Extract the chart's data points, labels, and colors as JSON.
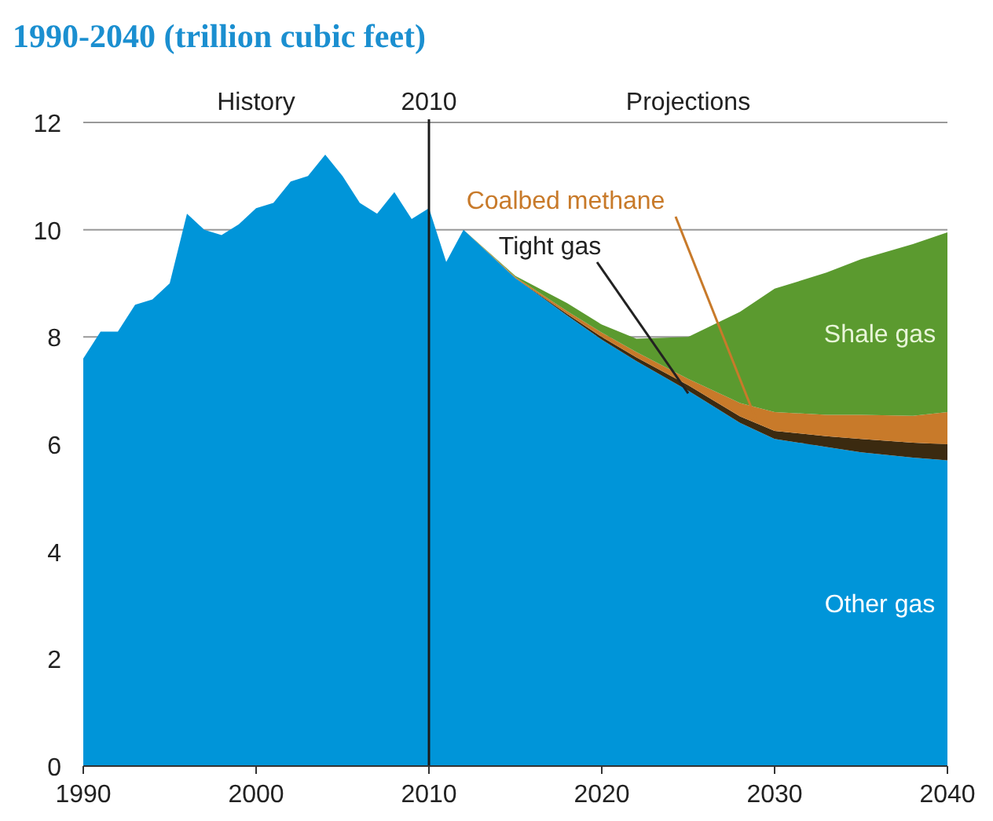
{
  "chart_data": {
    "type": "area",
    "stacked": true,
    "title": "1990-2040 (trillion cubic feet)",
    "x": [
      1990,
      1991,
      1992,
      1993,
      1994,
      1995,
      1996,
      1997,
      1998,
      1999,
      2000,
      2001,
      2002,
      2003,
      2004,
      2005,
      2006,
      2007,
      2008,
      2009,
      2010,
      2011,
      2012,
      2015,
      2018,
      2020,
      2022,
      2025,
      2028,
      2030,
      2033,
      2035,
      2038,
      2040
    ],
    "series": [
      {
        "name": "Other gas",
        "color": "#0095d9",
        "values": [
          7.6,
          8.1,
          8.1,
          8.6,
          8.7,
          9.0,
          10.3,
          10.0,
          9.9,
          10.1,
          10.4,
          10.5,
          10.9,
          11.0,
          11.4,
          11.0,
          10.5,
          10.3,
          10.7,
          10.2,
          10.4,
          9.4,
          10.0,
          9.1,
          8.4,
          7.95,
          7.55,
          7.0,
          6.4,
          6.1,
          5.95,
          5.85,
          5.75,
          5.7
        ]
      },
      {
        "name": "Tight gas",
        "color": "#3b2a10",
        "values": [
          null,
          null,
          null,
          null,
          null,
          null,
          null,
          null,
          null,
          null,
          null,
          null,
          null,
          null,
          null,
          null,
          null,
          null,
          null,
          null,
          null,
          null,
          0,
          0,
          0.03,
          0.05,
          0.07,
          0.1,
          0.12,
          0.15,
          0.2,
          0.25,
          0.28,
          0.3
        ]
      },
      {
        "name": "Coalbed methane",
        "color": "#c87a2a",
        "values": [
          null,
          null,
          null,
          null,
          null,
          null,
          null,
          null,
          null,
          null,
          null,
          null,
          null,
          null,
          null,
          null,
          null,
          null,
          null,
          null,
          null,
          null,
          0,
          0.02,
          0.05,
          0.08,
          0.1,
          0.12,
          0.25,
          0.35,
          0.4,
          0.45,
          0.5,
          0.6
        ]
      },
      {
        "name": "Shale gas",
        "color": "#5b9a2f",
        "values": [
          null,
          null,
          null,
          null,
          null,
          null,
          null,
          null,
          null,
          null,
          null,
          null,
          null,
          null,
          null,
          null,
          null,
          null,
          null,
          null,
          null,
          null,
          0,
          0.02,
          0.15,
          0.15,
          0.25,
          0.78,
          1.7,
          2.3,
          2.65,
          2.9,
          3.2,
          3.35
        ]
      }
    ],
    "xlim": [
      1990,
      2040
    ],
    "xticks": [
      1990,
      2000,
      2010,
      2020,
      2030,
      2040
    ],
    "ylim": [
      0,
      12
    ],
    "yticks": [
      0,
      2,
      4,
      6,
      8,
      10,
      12
    ],
    "grid": "y",
    "ref_lines": [
      {
        "axis": "x",
        "value": 2010,
        "label": "2010"
      }
    ],
    "annotations": [
      "History",
      "Projections"
    ]
  }
}
